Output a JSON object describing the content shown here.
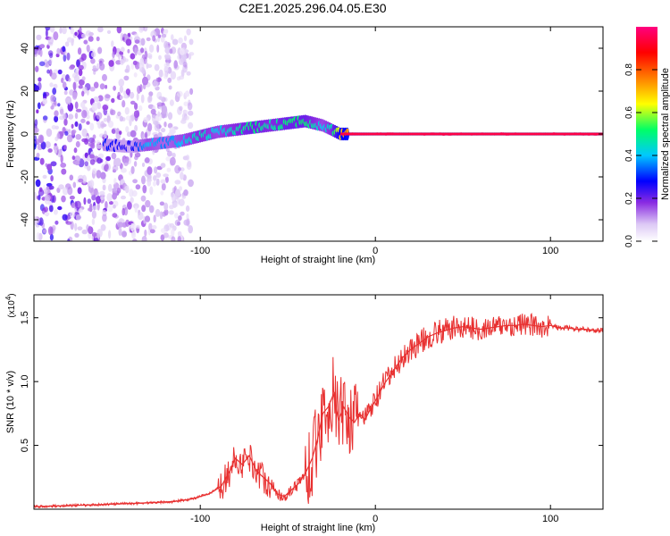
{
  "title": "C2E1.2025.296.04.05.E30",
  "chart_data": [
    {
      "type": "heatmap",
      "title": "C2E1.2025.296.04.05.E30",
      "xlabel": "Height of straight line (km)",
      "ylabel": "Frequency (Hz)",
      "xlim": [
        -195,
        130
      ],
      "ylim": [
        -50,
        50
      ],
      "x_ticks": [
        -100,
        0,
        100
      ],
      "y_ticks": [
        -40,
        -20,
        0,
        20,
        40
      ],
      "colorbar": {
        "label": "Normalized spectral amplitude",
        "range": [
          0.0,
          1.0
        ],
        "ticks": [
          0.0,
          0.2,
          0.4,
          0.6,
          0.8
        ],
        "colors": [
          "#ffffff",
          "#dcc8f5",
          "#8a2be2",
          "#0000ff",
          "#00c8ff",
          "#00ff66",
          "#ffff00",
          "#ff7f00",
          "#ff0000",
          "#ff007f"
        ]
      },
      "signal_track": [
        {
          "x": -155,
          "freq": -5,
          "amp": 0.35
        },
        {
          "x": -140,
          "freq": -6,
          "amp": 0.3
        },
        {
          "x": -130,
          "freq": -5,
          "amp": 0.45
        },
        {
          "x": -120,
          "freq": -4,
          "amp": 0.4
        },
        {
          "x": -110,
          "freq": -3,
          "amp": 0.45
        },
        {
          "x": -100,
          "freq": -1,
          "amp": 0.5
        },
        {
          "x": -90,
          "freq": 1,
          "amp": 0.45
        },
        {
          "x": -80,
          "freq": 2,
          "amp": 0.5
        },
        {
          "x": -70,
          "freq": 3,
          "amp": 0.55
        },
        {
          "x": -60,
          "freq": 4,
          "amp": 0.5
        },
        {
          "x": -50,
          "freq": 5,
          "amp": 0.55
        },
        {
          "x": -40,
          "freq": 6,
          "amp": 0.55
        },
        {
          "x": -30,
          "freq": 4,
          "amp": 0.45
        },
        {
          "x": -25,
          "freq": 2,
          "amp": 0.5
        },
        {
          "x": -20,
          "freq": 0,
          "amp": 0.7
        },
        {
          "x": -10,
          "freq": 0,
          "amp": 0.85
        },
        {
          "x": 0,
          "freq": 0,
          "amp": 0.95
        },
        {
          "x": 50,
          "freq": 0,
          "amp": 0.98
        },
        {
          "x": 100,
          "freq": 0,
          "amp": 0.98
        },
        {
          "x": 130,
          "freq": 0,
          "amp": 0.98
        }
      ]
    },
    {
      "type": "line",
      "xlabel": "Height of straight line (km)",
      "ylabel": "SNR (10 * v/v)",
      "y_scale_label": "(x10",
      "y_scale_exp": "4",
      "y_scale_close": ")",
      "xlim": [
        -195,
        130
      ],
      "ylim": [
        0.0,
        1.68
      ],
      "x_ticks": [
        -100,
        0,
        100
      ],
      "y_ticks": [
        0.5,
        1.0,
        1.5
      ],
      "y_tick_labels": [
        "0.5",
        "1.0",
        "1.5"
      ],
      "series": [
        {
          "name": "SNR",
          "color": "#e83030",
          "x": [
            -195,
            -170,
            -150,
            -130,
            -115,
            -105,
            -95,
            -88,
            -83,
            -80,
            -76,
            -72,
            -68,
            -64,
            -60,
            -56,
            -52,
            -48,
            -44,
            -40,
            -36,
            -33,
            -30,
            -27,
            -24,
            -21,
            -18,
            -15,
            -12,
            -9,
            -6,
            -3,
            0,
            5,
            10,
            15,
            20,
            25,
            30,
            35,
            40,
            45,
            50,
            55,
            60,
            65,
            70,
            75,
            80,
            85,
            90,
            95,
            100,
            105,
            110,
            115,
            120,
            125,
            130
          ],
          "values": [
            0.02,
            0.03,
            0.04,
            0.05,
            0.06,
            0.08,
            0.12,
            0.18,
            0.3,
            0.4,
            0.35,
            0.42,
            0.3,
            0.25,
            0.2,
            0.12,
            0.1,
            0.15,
            0.2,
            0.28,
            0.4,
            0.55,
            0.75,
            0.8,
            0.9,
            0.7,
            0.8,
            0.72,
            0.68,
            0.75,
            0.7,
            0.78,
            0.85,
            0.98,
            1.08,
            1.18,
            1.25,
            1.3,
            1.35,
            1.38,
            1.4,
            1.42,
            1.43,
            1.42,
            1.41,
            1.42,
            1.43,
            1.44,
            1.44,
            1.45,
            1.44,
            1.43,
            1.44,
            1.42,
            1.42,
            1.41,
            1.41,
            1.4,
            1.4
          ]
        }
      ]
    }
  ]
}
